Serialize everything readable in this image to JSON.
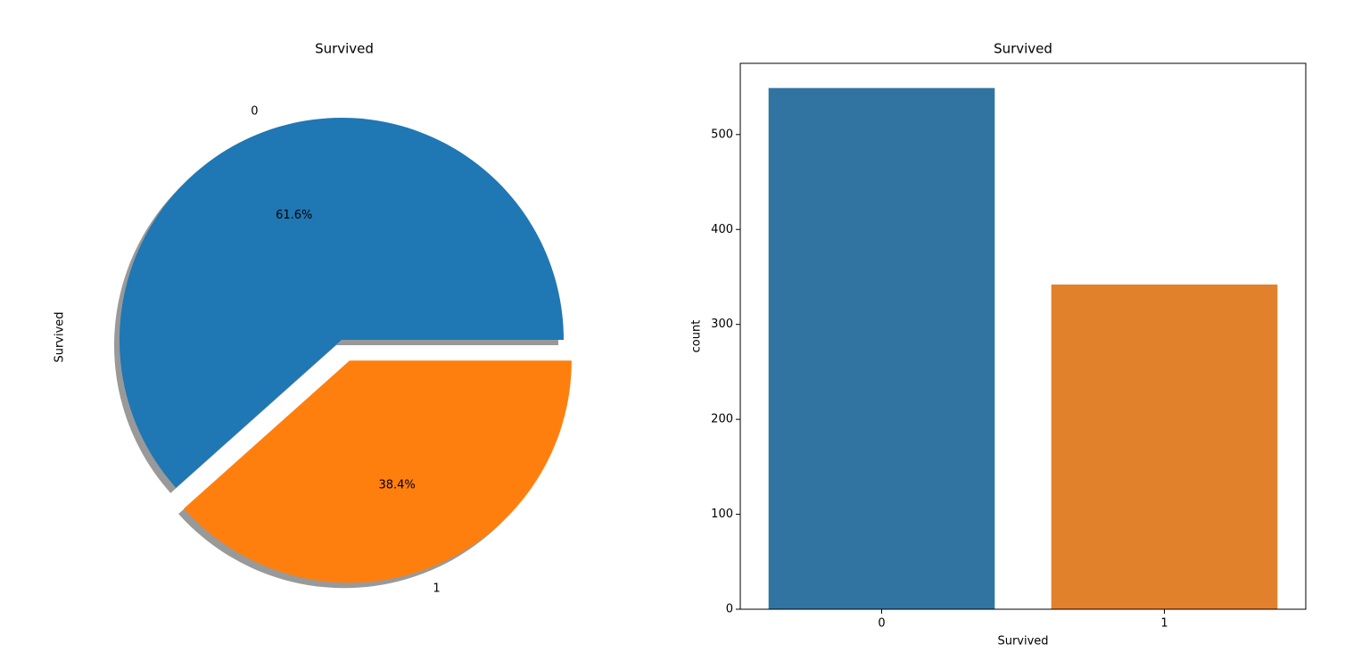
{
  "chart_data": [
    {
      "type": "pie",
      "title": "Survived",
      "ylabel": "Survived",
      "categories": [
        "0",
        "1"
      ],
      "values": [
        61.6,
        38.4
      ],
      "value_labels": [
        "61.6%",
        "38.4%"
      ],
      "colors": [
        "#1f77b4",
        "#ff7f0e"
      ],
      "explode": [
        0,
        0.1
      ],
      "shadow": true
    },
    {
      "type": "bar",
      "title": "Survived",
      "xlabel": "Survived",
      "ylabel": "count",
      "categories": [
        "0",
        "1"
      ],
      "values": [
        549,
        342
      ],
      "colors": [
        "#3274a1",
        "#e1812c"
      ],
      "ylim": [
        0,
        575
      ],
      "yticks": [
        0,
        100,
        200,
        300,
        400,
        500
      ]
    }
  ]
}
